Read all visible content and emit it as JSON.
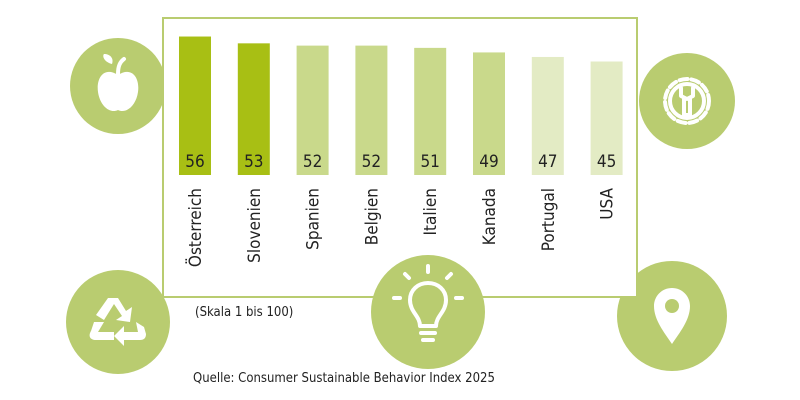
{
  "chart_data": {
    "type": "bar",
    "categories": [
      "Österreich",
      "Slovenien",
      "Spanien",
      "Belgien",
      "Italien",
      "Kanada",
      "Portugal",
      "USA"
    ],
    "values": [
      56,
      53,
      52,
      52,
      51,
      49,
      47,
      45
    ],
    "colors": [
      "#a8bf14",
      "#a8bf14",
      "#c9d98b",
      "#c9d98b",
      "#c9d98b",
      "#c9d98b",
      "#e3ebc4",
      "#e3ebc4"
    ],
    "note": "(Skala 1 bis 100)",
    "source": "Quelle: Consumer Sustainable Behavior Index 2025"
  }
}
